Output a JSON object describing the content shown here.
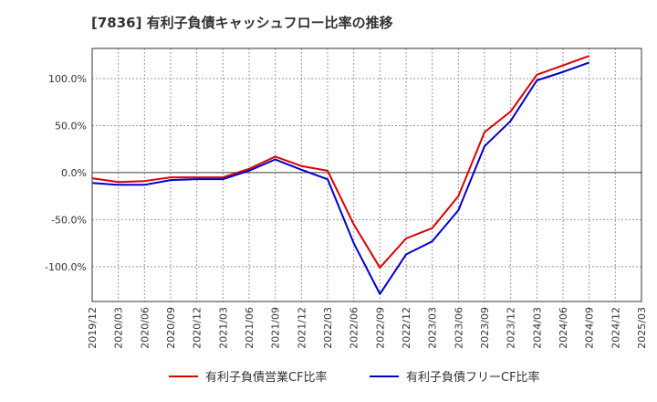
{
  "chart_data": {
    "type": "line",
    "title": "[7836]  有利子負債キャッシュフロー比率の推移",
    "xlabel": "",
    "ylabel": "",
    "x_ticks": [
      "2019/12",
      "2020/03",
      "2020/06",
      "2020/09",
      "2020/12",
      "2021/03",
      "2021/06",
      "2021/09",
      "2021/12",
      "2022/03",
      "2022/06",
      "2022/09",
      "2022/12",
      "2023/03",
      "2023/06",
      "2023/09",
      "2023/12",
      "2024/03",
      "2024/06",
      "2024/09",
      "2024/12",
      "2025/03"
    ],
    "y_ticks": [
      "100.0%",
      "50.0%",
      "0.0%",
      "-50.0%",
      "-100.0%"
    ],
    "y_tick_values": [
      100,
      50,
      0,
      -50,
      -100
    ],
    "ylim": [
      -137,
      132
    ],
    "grid": true,
    "legend_position": "bottom",
    "x": [
      "2019/12",
      "2020/03",
      "2020/06",
      "2020/09",
      "2020/12",
      "2021/03",
      "2021/06",
      "2021/09",
      "2021/12",
      "2022/03",
      "2022/06",
      "2022/09",
      "2022/12",
      "2023/03",
      "2023/06",
      "2023/09",
      "2023/12",
      "2024/03",
      "2024/06",
      "2024/09"
    ],
    "series": [
      {
        "name": "有利子負債営業CF比率",
        "color": "#dd0000",
        "values": [
          -6,
          -10,
          -9,
          -5,
          -5,
          -5,
          4,
          17,
          7,
          2,
          -55,
          -101,
          -70,
          -59,
          -25,
          43,
          65,
          104,
          114,
          124
        ]
      },
      {
        "name": "有利子負債フリーCF比率",
        "color": "#0000cc",
        "values": [
          -11,
          -13,
          -13,
          -8,
          -7,
          -7,
          2,
          14,
          3,
          -7,
          -75,
          -129,
          -87,
          -73,
          -40,
          28,
          55,
          98,
          107,
          117
        ]
      }
    ]
  }
}
